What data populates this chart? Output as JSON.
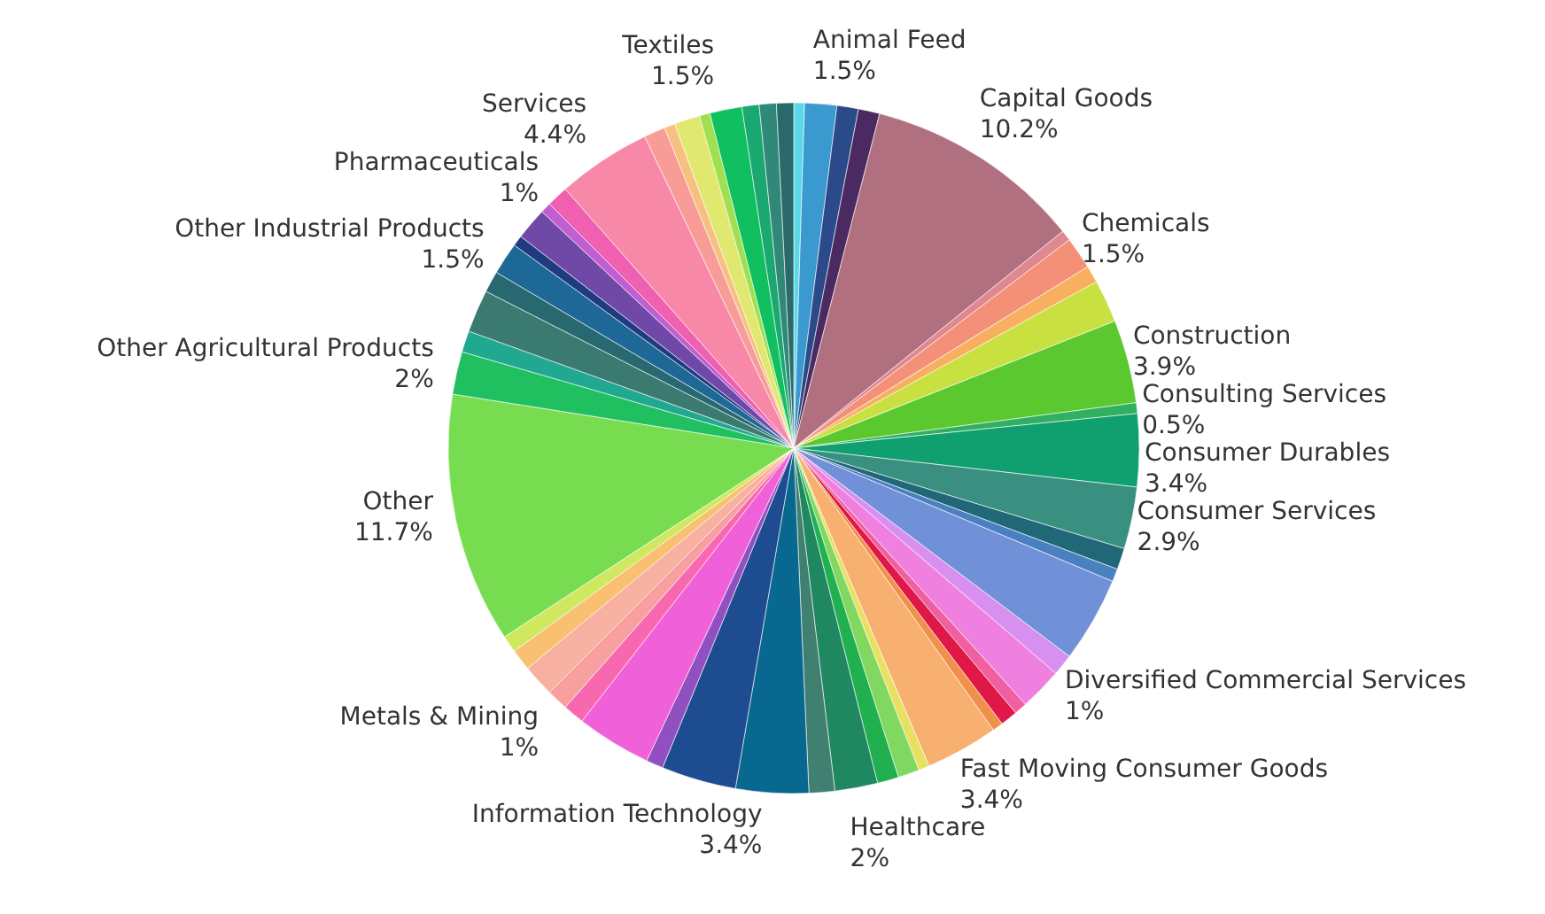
{
  "chart_data": {
    "type": "pie",
    "categories": [
      null,
      "Animal Feed",
      null,
      null,
      "Capital Goods",
      null,
      "Chemicals",
      null,
      null,
      "Construction",
      "Consulting Services",
      "Consumer Durables",
      "Consumer Services",
      null,
      null,
      null,
      "Diversified Commercial Services",
      null,
      null,
      null,
      null,
      "Fast Moving Consumer Goods",
      null,
      null,
      null,
      "Healthcare",
      null,
      "Information Technology",
      null,
      null,
      null,
      null,
      "Metals & Mining",
      null,
      null,
      null,
      "Other",
      "Other Agricultural Products",
      null,
      null,
      null,
      "Other Industrial Products",
      null,
      null,
      null,
      "Pharmaceuticals",
      "Services",
      null,
      null,
      null,
      null,
      "Textiles",
      null,
      null,
      null
    ],
    "values": [
      0.5,
      1.5,
      1,
      1,
      10.2,
      0.5,
      1.5,
      0.8,
      2,
      3.9,
      0.5,
      3.4,
      2.9,
      1,
      0.6,
      4,
      1,
      2,
      0.6,
      0.8,
      0.5,
      3.4,
      0.5,
      1,
      1,
      2,
      1.2,
      3.4,
      3.5,
      0.8,
      3.5,
      1,
      1,
      1.5,
      1,
      0.8,
      11.7,
      2,
      1,
      2,
      1,
      1.5,
      0.5,
      1.5,
      0.5,
      1,
      4.4,
      1,
      0.5,
      1.2,
      0.5,
      1.5,
      0.8,
      0.8,
      0.8
    ],
    "value_labels": [
      null,
      "1.5%",
      null,
      null,
      "10.2%",
      null,
      "1.5%",
      null,
      null,
      "3.9%",
      "0.5%",
      "3.4%",
      "2.9%",
      null,
      null,
      null,
      "1%",
      null,
      null,
      null,
      null,
      "3.4%",
      null,
      null,
      null,
      "2%",
      null,
      "3.4%",
      null,
      null,
      null,
      null,
      "1%",
      null,
      null,
      null,
      "11.7%",
      "2%",
      null,
      null,
      null,
      "1.5%",
      null,
      null,
      null,
      "1%",
      "4.4%",
      null,
      null,
      null,
      null,
      "1.5%",
      null,
      null,
      null
    ],
    "colors": [
      "#5ad8e8",
      "#3a9ad0",
      "#2a4a8a",
      "#4a2a60",
      "#b07080",
      "#e08890",
      "#f59078",
      "#f8b060",
      "#c8e040",
      "#5cc830",
      "#30b060",
      "#10a070",
      "#3a9080",
      "#206878",
      "#4a80c0",
      "#7090d8",
      "#d890f0",
      "#f080e0",
      "#f060a0",
      "#e01848",
      "#f0904a",
      "#f8b070",
      "#e8e060",
      "#80d860",
      "#20b050",
      "#208860",
      "#408070",
      "#086890",
      "#1e4c90",
      "#9050c0",
      "#f060d8",
      "#f868b0",
      "#f8a0a0",
      "#f8b0a0",
      "#f8c070",
      "#d0e860",
      "#78dc50",
      "#20c060",
      "#20a890",
      "#3a7a70",
      "#286870",
      "#1e6898",
      "#203c80",
      "#7048a8",
      "#c060d0",
      "#f060b0",
      "#f888a8",
      "#f89c98",
      "#f8c080",
      "#e0e870",
      "#a0e050",
      "#10c060",
      "#18a870",
      "#308878",
      "#2a6a6a"
    ]
  }
}
